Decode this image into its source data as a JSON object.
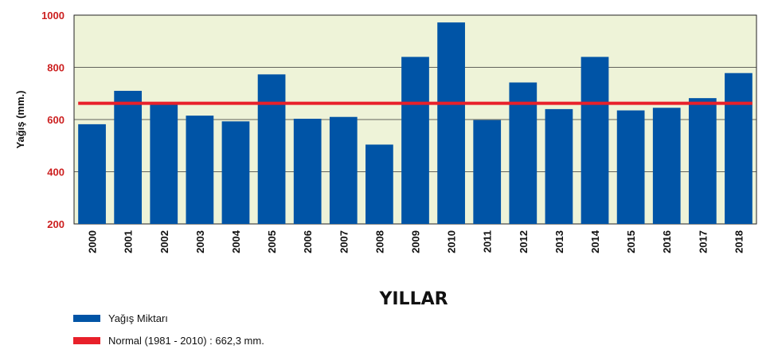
{
  "chart_data": {
    "type": "bar",
    "title": "",
    "ylabel": "Yağış (mm.)",
    "xlabel": "YILLAR",
    "ylim": [
      200,
      1000
    ],
    "yticks": [
      200,
      400,
      600,
      800,
      1000
    ],
    "grid": true,
    "legend_position": "bottom-left",
    "categories": [
      "2000",
      "2001",
      "2002",
      "2003",
      "2004",
      "2005",
      "2006",
      "2007",
      "2008",
      "2009",
      "2010",
      "2011",
      "2012",
      "2013",
      "2014",
      "2015",
      "2016",
      "2017",
      "2018"
    ],
    "series": [
      {
        "name": "Yağış Miktarı",
        "color": "#0054a6",
        "values": [
          582,
          710,
          662,
          615,
          593,
          773,
          603,
          610,
          504,
          840,
          972,
          598,
          742,
          640,
          840,
          635,
          645,
          682,
          778
        ]
      }
    ],
    "reference_line": {
      "name": "Normal (1981 - 2010) : 662,3 mm.",
      "value": 662.3,
      "color": "#e8202a"
    },
    "plot_background": "#eef3d8"
  }
}
